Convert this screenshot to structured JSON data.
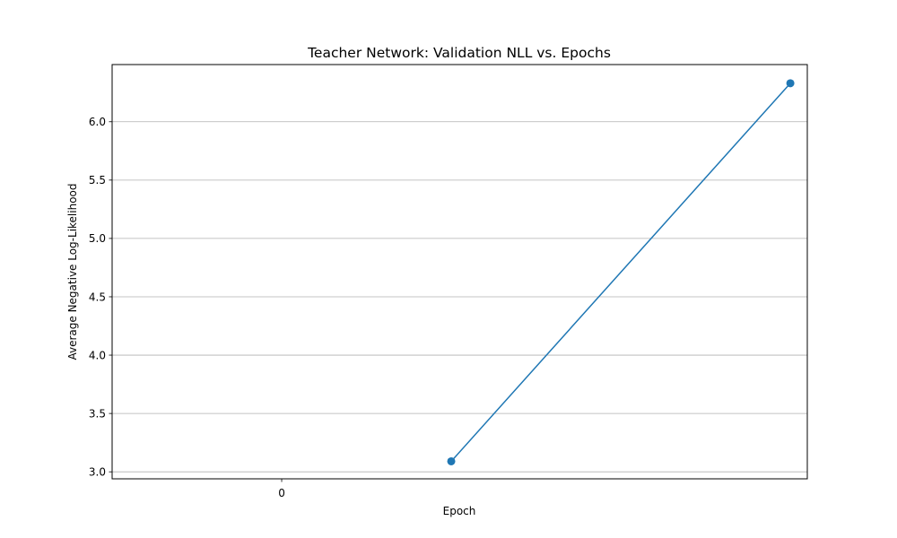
{
  "chart_data": {
    "type": "line",
    "title": "Teacher Network: Validation NLL vs. Epochs",
    "xlabel": "Epoch",
    "ylabel": "Average Negative Log-Likelihood",
    "x": [
      0.5,
      1.5
    ],
    "x_ticks": [
      0
    ],
    "xlim": [
      -0.5,
      1.55
    ],
    "y_ticks": [
      3.0,
      3.5,
      4.0,
      4.5,
      5.0,
      5.5,
      6.0
    ],
    "ylim": [
      2.94,
      6.49
    ],
    "grid": "y",
    "series": [
      {
        "name": "Validation NLL",
        "values": [
          3.09,
          6.33
        ],
        "color": "#1f77b4",
        "marker": "circle"
      }
    ]
  }
}
